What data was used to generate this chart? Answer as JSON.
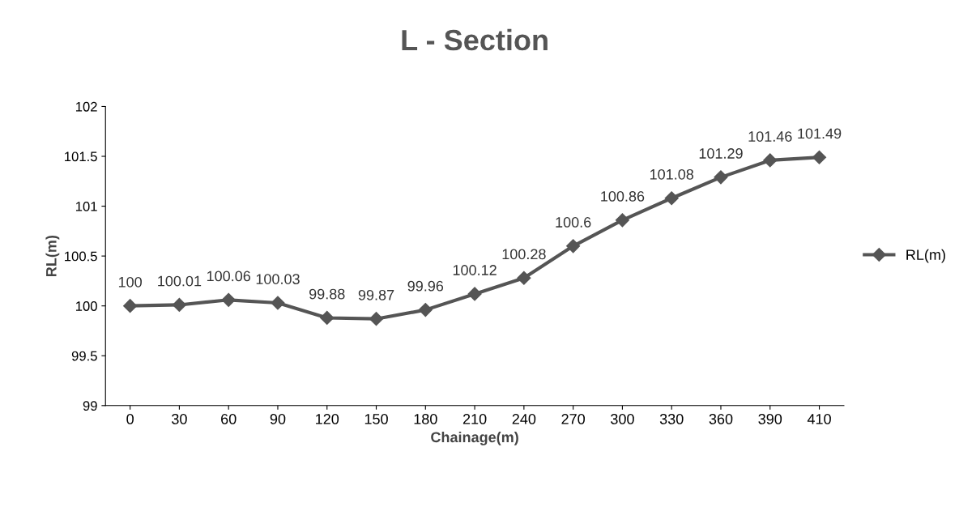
{
  "chart_data": {
    "type": "line",
    "title": "L - Section",
    "xlabel": "Chainage(m)",
    "ylabel": "RL(m)",
    "categories": [
      "0",
      "30",
      "60",
      "90",
      "120",
      "150",
      "180",
      "210",
      "240",
      "270",
      "300",
      "330",
      "360",
      "390",
      "410"
    ],
    "series": [
      {
        "name": "RL(m)",
        "color": "#555555",
        "values": [
          100,
          100.01,
          100.06,
          100.03,
          99.88,
          99.87,
          99.96,
          100.12,
          100.28,
          100.6,
          100.86,
          101.08,
          101.29,
          101.46,
          101.49
        ]
      }
    ],
    "ylim": [
      99,
      102
    ],
    "yticks": [
      99,
      99.5,
      100,
      100.5,
      101,
      101.5,
      102
    ],
    "data_labels": true,
    "legend": "right",
    "marker": "diamond",
    "line_style": "solid",
    "grid": false
  }
}
